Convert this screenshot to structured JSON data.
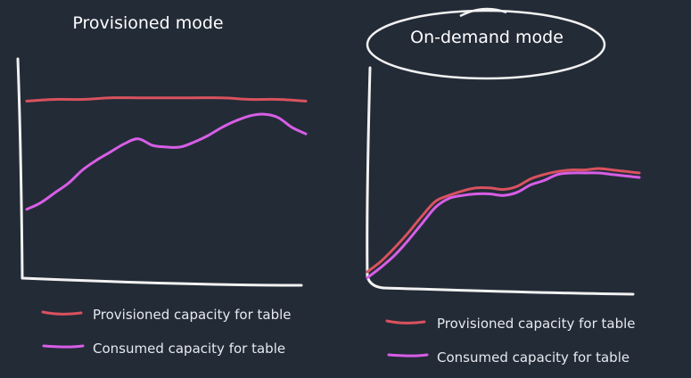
{
  "colors": {
    "background": "#232b37",
    "provisioned": "#d9525e",
    "consumed": "#d75ee6",
    "axis": "#f2f2f2"
  },
  "chart_data": [
    {
      "type": "line",
      "title": "Provisioned mode",
      "xlabel": "",
      "ylabel": "",
      "xlim": [
        0,
        10
      ],
      "ylim": [
        0,
        10
      ],
      "grid": false,
      "legend": "bottom",
      "series": [
        {
          "name": "Provisioned capacity for table",
          "color": "#d9525e",
          "x": [
            0,
            1,
            2,
            3,
            4,
            5,
            6,
            7,
            8,
            9,
            10
          ],
          "y": [
            9.6,
            9.7,
            9.7,
            9.8,
            9.8,
            9.8,
            9.8,
            9.8,
            9.7,
            9.7,
            9.6
          ]
        },
        {
          "name": "Consumed capacity for table",
          "color": "#d75ee6",
          "x": [
            0,
            0.5,
            1,
            1.5,
            2,
            2.5,
            3,
            3.5,
            4,
            4.5,
            5,
            5.5,
            6,
            6.5,
            7,
            7.5,
            8,
            8.5,
            9,
            9.5,
            10
          ],
          "y": [
            3.0,
            3.4,
            4.0,
            4.6,
            5.4,
            6.0,
            6.5,
            7.0,
            7.3,
            6.9,
            6.8,
            6.8,
            7.1,
            7.5,
            8.0,
            8.4,
            8.7,
            8.8,
            8.6,
            8.0,
            7.6
          ]
        }
      ]
    },
    {
      "type": "line",
      "title": "On-demand mode",
      "xlabel": "",
      "ylabel": "",
      "xlim": [
        0,
        10
      ],
      "ylim": [
        0,
        10
      ],
      "grid": false,
      "legend": "bottom",
      "series": [
        {
          "name": "Provisioned capacity for table",
          "color": "#d9525e",
          "x": [
            0,
            0.5,
            1,
            1.5,
            2,
            2.5,
            3,
            3.5,
            4,
            4.5,
            5,
            5.5,
            6,
            6.5,
            7,
            7.5,
            8,
            8.5,
            9,
            9.5,
            10
          ],
          "y": [
            0.9,
            1.6,
            2.5,
            3.5,
            4.6,
            5.6,
            6.0,
            6.3,
            6.5,
            6.5,
            6.4,
            6.6,
            7.1,
            7.4,
            7.6,
            7.7,
            7.7,
            7.8,
            7.7,
            7.6,
            7.5
          ]
        },
        {
          "name": "Consumed capacity for table",
          "color": "#d75ee6",
          "x": [
            0,
            0.5,
            1,
            1.5,
            2,
            2.5,
            3,
            3.5,
            4,
            4.5,
            5,
            5.5,
            6,
            6.5,
            7,
            7.5,
            8,
            8.5,
            9,
            9.5,
            10
          ],
          "y": [
            0.5,
            1.2,
            2.0,
            3.0,
            4.1,
            5.2,
            5.8,
            6.0,
            6.1,
            6.1,
            6.0,
            6.2,
            6.7,
            7.0,
            7.4,
            7.5,
            7.5,
            7.5,
            7.4,
            7.3,
            7.2
          ]
        }
      ]
    }
  ]
}
